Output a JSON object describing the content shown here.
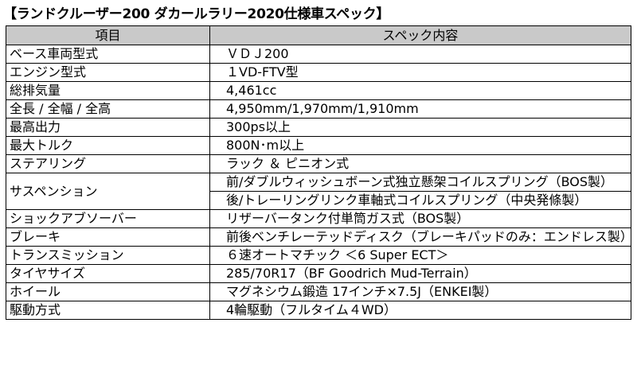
{
  "title": "【ランドクルーザー200 ダカールラリー2020仕様車スペック】",
  "header": {
    "item": "項目",
    "spec": "スペック内容"
  },
  "rows": [
    {
      "item": "ベース車両型式",
      "value": "ＶＤＪ200"
    },
    {
      "item": "エンジン型式",
      "value": "１VD-FTV型"
    },
    {
      "item": "総排気量",
      "value": "4,461cc"
    },
    {
      "item": "全長 / 全幅 / 全高",
      "value": "4,950mm/1,970mm/1,910mm"
    },
    {
      "item": "最高出力",
      "value": "300ps以上"
    },
    {
      "item": "最大トルク",
      "value": "800N･m以上"
    },
    {
      "item": "ステアリング",
      "value": "ラック ＆ ピニオン式"
    },
    {
      "item": "サスペンション",
      "value": "前/ダブルウィッシュボーン式独立懸架コイルスプリング（BOS製）",
      "value2": "後/トレーリングリンク車軸式コイルスプリング（中央発條製）"
    },
    {
      "item": "ショックアブソーバー",
      "value": "リザーバータンク付単筒ガス式（BOS製）"
    },
    {
      "item": "ブレーキ",
      "value": "前後ベンチレーテッドディスク（ブレーキパッドのみ：エンドレス製）"
    },
    {
      "item": "トランスミッション",
      "value": "６速オートマチック ＜6 Super ECT＞"
    },
    {
      "item": "タイヤサイズ",
      "value": "285/70R17（BF Goodrich Mud-Terrain）"
    },
    {
      "item": "ホイール",
      "value": "マグネシウム鍛造 17インチ×7.5J（ENKEI製）"
    },
    {
      "item": "駆動方式",
      "value": "4輪駆動（フルタイム４WD）"
    }
  ]
}
